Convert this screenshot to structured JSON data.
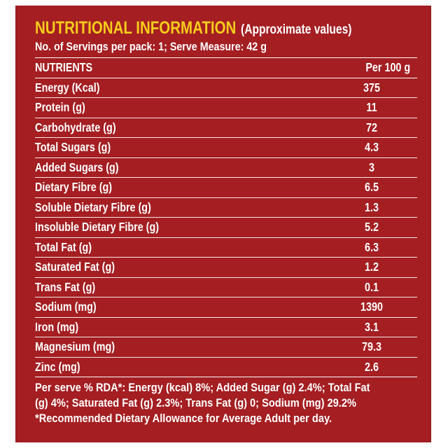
{
  "header": {
    "title": "NUTRITIONAL INFORMATION",
    "subtitle": "(Approximate values)",
    "serving": "No. of Servings per pack: 1; Serve Measure: 42 g"
  },
  "table": {
    "col_nutrient": "NUTRIENTS",
    "col_value": "Per 100 g",
    "rows": [
      {
        "name": "Energy (Kcal)",
        "value": "375"
      },
      {
        "name": "Protein (g)",
        "value": "11"
      },
      {
        "name": "Carbohydrate (g)",
        "value": "72"
      },
      {
        "name": "Total Sugars (g)",
        "value": "4.3"
      },
      {
        "name": "Added Sugars (g)",
        "value": "3"
      },
      {
        "name": "Dietary Fibre (g)",
        "value": "6.5"
      },
      {
        "name": "Soluble Dietary Fibre (g)",
        "value": "1.3"
      },
      {
        "name": "Insoluble Dietary Fibre (g)",
        "value": "5.2"
      },
      {
        "name": "Total Fat (g)",
        "value": "6.3"
      },
      {
        "name": "Saturated Fat (g)",
        "value": "1.2"
      },
      {
        "name": "Trans Fat (g)",
        "value": "0.1"
      },
      {
        "name": "Sodium (mg)",
        "value": "1390"
      },
      {
        "name": "Iron (mg)",
        "value": "3.1"
      },
      {
        "name": "Magnesium (mg)",
        "value": "79.3"
      },
      {
        "name": "Zinc (mg)",
        "value": "2.6"
      }
    ]
  },
  "footnote": {
    "line1": "Per serve % RDA*: Energy (kcal) 8%; Added Sugar (g) 2.4%; Total Fat",
    "line2": "(g) 4%; Saturated Fat (g) 2.3%; Trans Fat (g) 0; Sodium (mg) 29.2%",
    "line3": "*Recommended Dietary Allowance for Average Adult per day."
  },
  "colors": {
    "background": "#a41e22",
    "title": "#f7cd1c",
    "text": "#ffffff"
  }
}
